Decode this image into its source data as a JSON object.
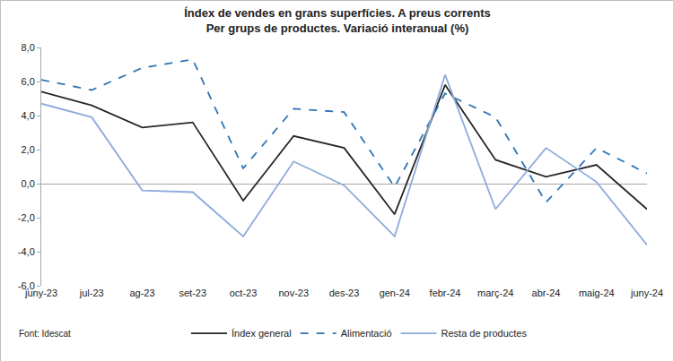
{
  "chart_data": {
    "type": "line",
    "title": "Índex de vendes en grans superfícies. A preus corrents",
    "subtitle": "Per grups de productes. Variació interanual (%)",
    "source": "Font: Idescat",
    "categories": [
      "juny-23",
      "jul-23",
      "ag-23",
      "set-23",
      "oct-23",
      "nov-23",
      "des-23",
      "gen-24",
      "febr-24",
      "març-24",
      "abr-24",
      "maig-24",
      "juny-24"
    ],
    "series": [
      {
        "name": "Índex general",
        "color": "#262626",
        "line_style": "solid",
        "values": [
          5.4,
          4.6,
          3.3,
          3.6,
          -1.0,
          2.8,
          2.1,
          -1.8,
          5.8,
          1.4,
          0.4,
          1.1,
          -1.5
        ]
      },
      {
        "name": "Alimentació",
        "color": "#2e75b6",
        "line_style": "dash",
        "values": [
          6.1,
          5.5,
          6.8,
          7.3,
          0.9,
          4.4,
          4.2,
          -0.2,
          5.3,
          3.9,
          -1.1,
          2.1,
          0.6
        ]
      },
      {
        "name": "Resta de productes",
        "color": "#8eaadb",
        "line_style": "solid",
        "values": [
          4.7,
          3.9,
          -0.4,
          -0.5,
          -3.1,
          1.3,
          -0.1,
          -3.1,
          6.4,
          -1.5,
          2.1,
          0.1,
          -3.6
        ]
      }
    ],
    "ylim": [
      -6,
      8
    ],
    "yticks": [
      {
        "value": -6,
        "label": "-6,0"
      },
      {
        "value": -4,
        "label": "-4,0"
      },
      {
        "value": -2,
        "label": "-2,0"
      },
      {
        "value": 0,
        "label": "0,0"
      },
      {
        "value": 2,
        "label": "2,0"
      },
      {
        "value": 4,
        "label": "4,0"
      },
      {
        "value": 6,
        "label": "6,0"
      },
      {
        "value": 8,
        "label": "8,0"
      }
    ],
    "grid": false,
    "legend": "bottom"
  }
}
